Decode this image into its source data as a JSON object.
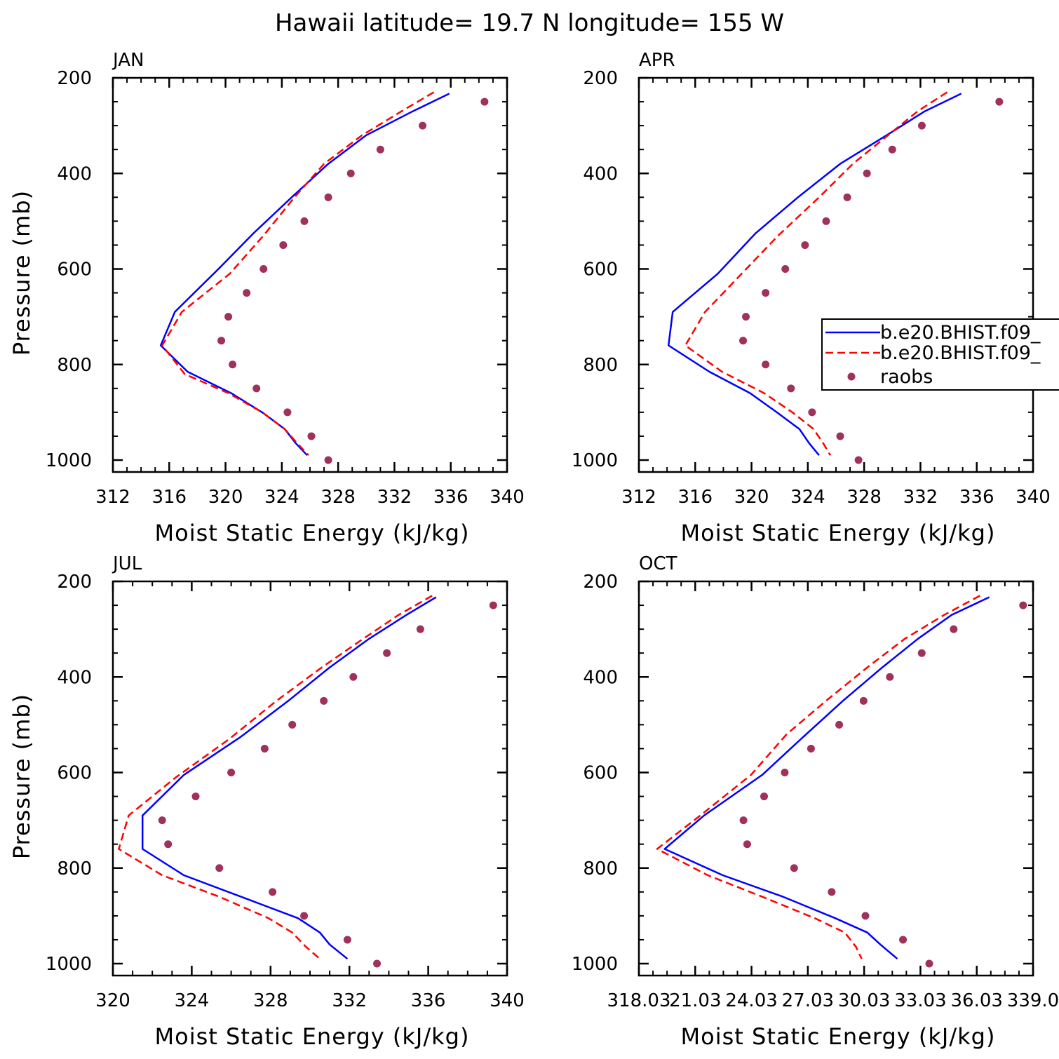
{
  "figure": {
    "title": "Hawaii  latitude= 19.7 N longitude= 155 W"
  },
  "legend": {
    "entries": [
      {
        "label": "b.e20.BHIST.f09_",
        "color": "#0000ff",
        "style": "solid"
      },
      {
        "label": "b.e20.BHIST.f09_",
        "color": "#ff0000",
        "style": "dashed"
      },
      {
        "label": "raobs",
        "color": "#a0305c",
        "style": "dot"
      }
    ]
  },
  "chart_data": [
    {
      "type": "line",
      "panel_label": "JAN",
      "xlabel": "Moist Static Energy (kJ/kg)",
      "ylabel": "Pressure (mb)",
      "xlim": [
        312,
        340
      ],
      "ylim": [
        1000,
        200
      ],
      "xticks": [
        "312",
        "316",
        "320",
        "324",
        "328",
        "332",
        "336",
        "340"
      ],
      "yticks": [
        "200",
        "400",
        "600",
        "800",
        "1000"
      ],
      "series": [
        {
          "key": "blue",
          "p": [
            233,
            270,
            320,
            380,
            450,
            525,
            600,
            690,
            760,
            815,
            860,
            900,
            935,
            965,
            990
          ],
          "mse": [
            335.9,
            333.3,
            330.0,
            327.3,
            324.7,
            322.0,
            319.5,
            316.4,
            315.4,
            317.3,
            320.4,
            322.6,
            324.2,
            325.0,
            325.8
          ]
        },
        {
          "key": "red",
          "p": [
            230,
            270,
            320,
            380,
            450,
            530,
            610,
            690,
            760,
            820,
            860,
            900,
            935,
            965,
            990
          ],
          "mse": [
            334.8,
            332.5,
            329.7,
            327.0,
            324.9,
            322.7,
            320.3,
            316.9,
            315.5,
            317.1,
            320.2,
            322.6,
            324.2,
            325.1,
            325.9
          ]
        },
        {
          "key": "obs",
          "p": [
            250,
            300,
            350,
            400,
            450,
            500,
            550,
            600,
            650,
            700,
            750,
            800,
            850,
            900,
            950,
            1000
          ],
          "mse": [
            338.4,
            334.0,
            331.0,
            328.9,
            327.3,
            325.6,
            324.1,
            322.7,
            321.5,
            320.2,
            319.7,
            320.5,
            322.2,
            324.4,
            326.1,
            327.3
          ]
        }
      ]
    },
    {
      "type": "line",
      "panel_label": "APR",
      "xlabel": "Moist Static Energy (kJ/kg)",
      "ylabel": "",
      "xlim": [
        312,
        340
      ],
      "ylim": [
        1000,
        200
      ],
      "xticks": [
        "312",
        "316",
        "320",
        "324",
        "328",
        "332",
        "336",
        "340"
      ],
      "yticks": [
        "200",
        "400",
        "600",
        "800",
        "1000"
      ],
      "series": [
        {
          "key": "blue",
          "p": [
            233,
            270,
            320,
            380,
            450,
            525,
            610,
            690,
            760,
            815,
            860,
            900,
            935,
            965,
            990
          ],
          "mse": [
            334.9,
            332.3,
            329.6,
            326.3,
            323.3,
            320.3,
            317.6,
            314.4,
            314.1,
            317.0,
            319.9,
            321.8,
            323.4,
            324.1,
            324.8
          ]
        },
        {
          "key": "red",
          "p": [
            230,
            270,
            320,
            380,
            450,
            530,
            610,
            690,
            760,
            815,
            860,
            900,
            935,
            965,
            990
          ],
          "mse": [
            333.9,
            331.8,
            329.7,
            327.2,
            324.8,
            321.9,
            319.3,
            316.7,
            315.3,
            317.9,
            320.9,
            322.9,
            324.4,
            325.1,
            325.6
          ]
        },
        {
          "key": "obs",
          "p": [
            250,
            300,
            350,
            400,
            450,
            500,
            550,
            600,
            650,
            700,
            750,
            800,
            850,
            900,
            950,
            1000
          ],
          "mse": [
            337.6,
            332.1,
            330.0,
            328.2,
            326.8,
            325.3,
            323.8,
            322.4,
            321.0,
            319.6,
            319.4,
            321.0,
            322.8,
            324.3,
            326.3,
            327.6
          ]
        }
      ]
    },
    {
      "type": "line",
      "panel_label": "JUL",
      "xlabel": "Moist Static Energy (kJ/kg)",
      "ylabel": "Pressure (mb)",
      "xlim": [
        320,
        340
      ],
      "ylim": [
        1000,
        200
      ],
      "xticks": [
        "320",
        "324",
        "328",
        "332",
        "336",
        "340"
      ],
      "yticks": [
        "200",
        "400",
        "600",
        "800",
        "1000"
      ],
      "series": [
        {
          "key": "blue",
          "p": [
            233,
            270,
            320,
            380,
            450,
            525,
            605,
            690,
            760,
            815,
            860,
            905,
            935,
            960,
            990
          ],
          "mse": [
            336.4,
            334.9,
            333.0,
            331.0,
            328.9,
            326.5,
            323.6,
            321.5,
            321.5,
            323.6,
            326.5,
            329.4,
            330.5,
            331.0,
            331.9
          ]
        },
        {
          "key": "red",
          "p": [
            230,
            270,
            320,
            380,
            450,
            530,
            610,
            690,
            760,
            815,
            860,
            905,
            935,
            965,
            990
          ],
          "mse": [
            336.2,
            334.5,
            332.7,
            330.6,
            328.3,
            325.9,
            323.2,
            320.8,
            320.3,
            322.5,
            325.4,
            327.9,
            329.1,
            329.8,
            330.5
          ]
        },
        {
          "key": "obs",
          "p": [
            250,
            300,
            350,
            400,
            450,
            500,
            550,
            600,
            650,
            700,
            750,
            800,
            850,
            900,
            950,
            1000
          ],
          "mse": [
            339.3,
            335.6,
            333.9,
            332.2,
            330.7,
            329.1,
            327.7,
            326.0,
            324.2,
            322.5,
            322.8,
            325.4,
            328.1,
            329.7,
            331.9,
            333.4
          ]
        }
      ]
    },
    {
      "type": "line",
      "panel_label": "OCT",
      "xlabel": "Moist Static Energy (kJ/kg)",
      "ylabel": "",
      "xlim": [
        318.03,
        339.03
      ],
      "ylim": [
        1000,
        200
      ],
      "xticks": [
        "318.03",
        "21.03",
        "24.03",
        "27.03",
        "30.03",
        "33.03",
        "36.03",
        "339.0"
      ],
      "yticks": [
        "200",
        "400",
        "600",
        "800",
        "1000"
      ],
      "series": [
        {
          "key": "blue",
          "p": [
            233,
            270,
            320,
            380,
            450,
            525,
            605,
            690,
            760,
            815,
            860,
            905,
            935,
            960,
            990
          ],
          "mse": [
            336.7,
            334.7,
            332.9,
            331.0,
            328.9,
            326.8,
            324.6,
            321.5,
            319.4,
            322.5,
            325.7,
            328.5,
            330.2,
            330.9,
            331.8
          ]
        },
        {
          "key": "red",
          "p": [
            230,
            270,
            320,
            380,
            450,
            520,
            605,
            690,
            760,
            815,
            860,
            905,
            935,
            965,
            990
          ],
          "mse": [
            336.2,
            334.3,
            332.2,
            330.2,
            328.0,
            325.9,
            324.0,
            321.3,
            319.0,
            321.7,
            324.6,
            327.4,
            329.0,
            329.6,
            329.9
          ]
        },
        {
          "key": "obs",
          "p": [
            250,
            300,
            350,
            400,
            450,
            500,
            550,
            600,
            650,
            700,
            750,
            800,
            850,
            900,
            950,
            1000
          ],
          "mse": [
            338.5,
            334.8,
            333.1,
            331.4,
            330.0,
            328.7,
            327.2,
            325.8,
            324.7,
            323.6,
            323.8,
            326.3,
            328.3,
            330.1,
            332.1,
            333.5
          ]
        }
      ]
    }
  ]
}
